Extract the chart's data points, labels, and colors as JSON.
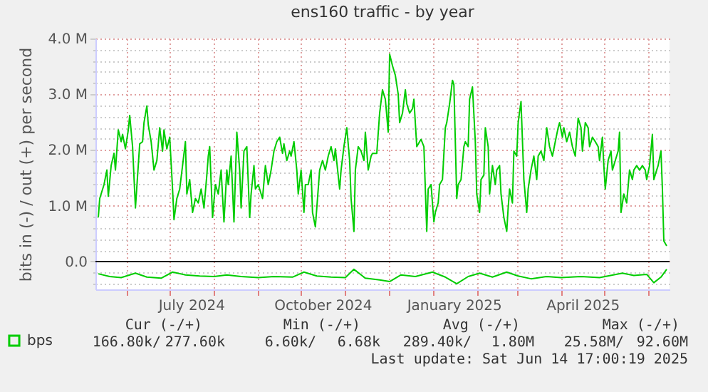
{
  "chart_data": {
    "type": "line",
    "title": "ens160 traffic - by year",
    "ylabel": "bits in (-) / out (+) per second",
    "xlim": [
      "2024-05-10",
      "2025-06-16"
    ],
    "xticks": [
      {
        "value": "2024-06-01",
        "label": null
      },
      {
        "value": "2024-07-01",
        "label": null
      },
      {
        "value": "2024-07-16",
        "label": "July 2024"
      },
      {
        "value": "2024-08-01",
        "label": null
      },
      {
        "value": "2024-09-01",
        "label": null
      },
      {
        "value": "2024-10-01",
        "label": null
      },
      {
        "value": "2024-10-16",
        "label": "October 2024"
      },
      {
        "value": "2024-11-01",
        "label": null
      },
      {
        "value": "2024-12-01",
        "label": null
      },
      {
        "value": "2025-01-01",
        "label": null
      },
      {
        "value": "2025-01-16",
        "label": "January 2025"
      },
      {
        "value": "2025-02-01",
        "label": null
      },
      {
        "value": "2025-03-01",
        "label": null
      },
      {
        "value": "2025-04-01",
        "label": null
      },
      {
        "value": "2025-04-16",
        "label": "April 2025"
      },
      {
        "value": "2025-05-01",
        "label": null
      },
      {
        "value": "2025-06-01",
        "label": null
      }
    ],
    "ylim": [
      -0.5,
      4.0
    ],
    "yticks": [
      {
        "value": -0.4,
        "label": null
      },
      {
        "value": -0.2,
        "label": null
      },
      {
        "value": 0,
        "label": "0.0"
      },
      {
        "value": 0.2,
        "label": null
      },
      {
        "value": 0.4,
        "label": null
      },
      {
        "value": 0.6,
        "label": null
      },
      {
        "value": 0.8,
        "label": null
      },
      {
        "value": 1,
        "label": "1.0 M"
      },
      {
        "value": 1.2,
        "label": null
      },
      {
        "value": 1.4,
        "label": null
      },
      {
        "value": 1.6,
        "label": null
      },
      {
        "value": 1.8,
        "label": null
      },
      {
        "value": 2,
        "label": "2.0 M"
      },
      {
        "value": 2.2,
        "label": null
      },
      {
        "value": 2.4,
        "label": null
      },
      {
        "value": 2.6,
        "label": null
      },
      {
        "value": 2.8,
        "label": null
      },
      {
        "value": 3,
        "label": "3.0 M"
      },
      {
        "value": 3.2,
        "label": null
      },
      {
        "value": 3.4,
        "label": null
      },
      {
        "value": 3.6,
        "label": null
      },
      {
        "value": 3.8,
        "label": null
      },
      {
        "value": 4,
        "label": "4.0 M"
      }
    ],
    "grid": true,
    "legend": "bottom left",
    "line_style": "solid",
    "marker": "none",
    "ref_lines": [
      {
        "axis": "y",
        "value": 0,
        "color": "#000000"
      }
    ],
    "annotations": [
      "Cur (-/+)",
      "Min (-/+)",
      "Avg (-/+)",
      "Max (-/+)",
      "166.80k/",
      "277.60k",
      "6.60k/",
      "6.68k",
      "289.40k/",
      "1.80M",
      "25.58M/",
      "92.60M",
      "Last update: Sat Jun 14 17:00:19 2025"
    ],
    "series": [
      {
        "name": "bps",
        "color": "#00cc00",
        "x": [
          "2024-05-12",
          "2024-05-13",
          "2024-05-16",
          "2024-05-18",
          "2024-05-19",
          "2024-05-21",
          "2024-05-23",
          "2024-05-24",
          "2024-05-26",
          "2024-05-28",
          "2024-05-29",
          "2024-05-31",
          "2024-06-02",
          "2024-06-03",
          "2024-06-05",
          "2024-06-07",
          "2024-06-10",
          "2024-06-12",
          "2024-06-13",
          "2024-06-15",
          "2024-06-16",
          "2024-06-18",
          "2024-06-20",
          "2024-06-22",
          "2024-06-24",
          "2024-06-26",
          "2024-06-27",
          "2024-06-29",
          "2024-07-01",
          "2024-07-03",
          "2024-07-04",
          "2024-07-06",
          "2024-07-08",
          "2024-07-10",
          "2024-07-12",
          "2024-07-13",
          "2024-07-15",
          "2024-07-17",
          "2024-07-19",
          "2024-07-21",
          "2024-07-23",
          "2024-07-25",
          "2024-07-27",
          "2024-07-28",
          "2024-07-29",
          "2024-07-31",
          "2024-08-02",
          "2024-08-04",
          "2024-08-06",
          "2024-08-08",
          "2024-08-10",
          "2024-08-11",
          "2024-08-13",
          "2024-08-15",
          "2024-08-17",
          "2024-08-19",
          "2024-08-20",
          "2024-08-22",
          "2024-08-24",
          "2024-08-26",
          "2024-08-27",
          "2024-08-29",
          "2024-08-30",
          "2024-09-01",
          "2024-09-04",
          "2024-09-06",
          "2024-09-08",
          "2024-09-10",
          "2024-09-12",
          "2024-09-14",
          "2024-09-16",
          "2024-09-18",
          "2024-09-19",
          "2024-09-21",
          "2024-09-23",
          "2024-09-24",
          "2024-09-26",
          "2024-09-28",
          "2024-09-29",
          "2024-10-01",
          "2024-10-03",
          "2024-10-04",
          "2024-10-06",
          "2024-10-08",
          "2024-10-09",
          "2024-10-11",
          "2024-10-13",
          "2024-10-14",
          "2024-10-16",
          "2024-10-18",
          "2024-10-20",
          "2024-10-22",
          "2024-10-24",
          "2024-10-25",
          "2024-10-28",
          "2024-10-29",
          "2024-10-31",
          "2024-11-02",
          "2024-11-04",
          "2024-11-05",
          "2024-11-07",
          "2024-11-08",
          "2024-11-10",
          "2024-11-12",
          "2024-11-14",
          "2024-11-15",
          "2024-11-17",
          "2024-11-19",
          "2024-11-20",
          "2024-11-23",
          "2024-11-25",
          "2024-11-27",
          "2024-11-29",
          "2024-12-01",
          "2024-12-02",
          "2024-12-04",
          "2024-12-06",
          "2024-12-08",
          "2024-12-09",
          "2024-12-11",
          "2024-12-13",
          "2024-12-14",
          "2024-12-16",
          "2024-12-18",
          "2024-12-19",
          "2024-12-21",
          "2024-12-23",
          "2024-12-24",
          "2024-12-26",
          "2024-12-28",
          "2024-12-29",
          "2024-12-31",
          "2025-01-02",
          "2025-01-03",
          "2025-01-05",
          "2025-01-06",
          "2025-01-08",
          "2025-01-10",
          "2025-01-11",
          "2025-01-13",
          "2025-01-15",
          "2025-01-16",
          "2025-01-18",
          "2025-01-19",
          "2025-01-21",
          "2025-01-23",
          "2025-01-24",
          "2025-01-26",
          "2025-01-27",
          "2025-01-29",
          "2025-01-31",
          "2025-02-01",
          "2025-02-03",
          "2025-02-04",
          "2025-02-06",
          "2025-02-07",
          "2025-02-09",
          "2025-02-10",
          "2025-02-12",
          "2025-02-14",
          "2025-02-15",
          "2025-02-17",
          "2025-02-18",
          "2025-02-20",
          "2025-02-22",
          "2025-02-23",
          "2025-02-24",
          "2025-02-26",
          "2025-02-27",
          "2025-03-01",
          "2025-03-02",
          "2025-03-04",
          "2025-03-06",
          "2025-03-08",
          "2025-03-09",
          "2025-03-11",
          "2025-03-13",
          "2025-03-15",
          "2025-03-16",
          "2025-03-18",
          "2025-03-20",
          "2025-03-22",
          "2025-03-24",
          "2025-03-26",
          "2025-03-28",
          "2025-03-30",
          "2025-03-31",
          "2025-04-02",
          "2025-04-03",
          "2025-04-05",
          "2025-04-07",
          "2025-04-09",
          "2025-04-11",
          "2025-04-13",
          "2025-04-15",
          "2025-04-16",
          "2025-04-18",
          "2025-04-20",
          "2025-04-21",
          "2025-04-23",
          "2025-04-25",
          "2025-04-27",
          "2025-04-28",
          "2025-04-30",
          "2025-05-01",
          "2025-05-02",
          "2025-05-04",
          "2025-05-06",
          "2025-05-07",
          "2025-05-09",
          "2025-05-11",
          "2025-05-12",
          "2025-05-13",
          "2025-05-15",
          "2025-05-17",
          "2025-05-19",
          "2025-05-21",
          "2025-05-22",
          "2025-05-24",
          "2025-05-26",
          "2025-05-28",
          "2025-05-30",
          "2025-05-31",
          "2025-06-02",
          "2025-06-04",
          "2025-06-05",
          "2025-06-07",
          "2025-06-08",
          "2025-06-10",
          "2025-06-11",
          "2025-06-12",
          "2025-06-14"
        ],
        "values": [
          0.79,
          1.13,
          1.38,
          1.64,
          1.17,
          1.72,
          1.94,
          1.64,
          2.36,
          2.15,
          2.28,
          2.02,
          2.36,
          2.62,
          2.06,
          0.96,
          2.11,
          2.15,
          2.49,
          2.79,
          2.45,
          2.15,
          1.64,
          1.81,
          2.4,
          1.98,
          2.36,
          2.02,
          2.23,
          1.3,
          0.75,
          1.13,
          1.3,
          1.72,
          2.15,
          1.21,
          1.47,
          0.88,
          1.13,
          1.05,
          1.3,
          0.96,
          1.55,
          1.89,
          2.06,
          0.79,
          1.38,
          1.21,
          1.64,
          0.71,
          1.64,
          1.38,
          1.89,
          0.71,
          2.32,
          1.64,
          0.96,
          1.98,
          2.06,
          0.79,
          1.21,
          1.72,
          1.3,
          1.38,
          1.13,
          1.72,
          1.38,
          1.64,
          1.98,
          2.15,
          2.23,
          1.94,
          2.11,
          1.81,
          1.98,
          1.89,
          2.15,
          1.64,
          1.21,
          1.64,
          0.88,
          1.38,
          1.38,
          1.64,
          0.88,
          0.62,
          1.3,
          1.64,
          1.81,
          1.64,
          1.89,
          2.06,
          1.81,
          2.02,
          1.3,
          1.64,
          2.06,
          2.4,
          1.81,
          1.13,
          0.54,
          1.64,
          2.06,
          1.98,
          1.81,
          2.32,
          1.64,
          1.89,
          1.94,
          1.94,
          2.66,
          3.08,
          2.91,
          2.32,
          3.72,
          3.51,
          3.34,
          3.0,
          2.49,
          2.66,
          3.08,
          2.83,
          2.66,
          2.74,
          2.91,
          2.06,
          2.15,
          2.19,
          2.06,
          0.54,
          1.3,
          1.38,
          0.71,
          0.88,
          1.05,
          1.38,
          1.47,
          2.4,
          2.49,
          2.83,
          3.25,
          3.17,
          1.13,
          1.38,
          1.47,
          2.06,
          2.15,
          2.06,
          2.91,
          3.13,
          2.15,
          1.21,
          0.88,
          1.47,
          1.55,
          2.4,
          2.06,
          1.21,
          1.72,
          1.38,
          1.64,
          1.72,
          1.21,
          0.79,
          0.54,
          0.96,
          1.3,
          1.05,
          1.98,
          1.89,
          2.49,
          2.87,
          1.47,
          0.88,
          1.3,
          1.64,
          1.89,
          1.47,
          1.89,
          1.98,
          1.81,
          2.4,
          2.06,
          1.89,
          2.15,
          2.4,
          2.49,
          2.23,
          2.4,
          2.15,
          2.32,
          2.06,
          1.89,
          2.57,
          2.4,
          1.98,
          2.49,
          2.4,
          2.06,
          2.23,
          2.15,
          2.06,
          1.81,
          2.23,
          1.72,
          1.3,
          1.81,
          1.98,
          1.64,
          1.81,
          1.98,
          2.32,
          0.88,
          1.21,
          1.05,
          1.64,
          1.47,
          1.64,
          1.72,
          1.64,
          1.72,
          1.64,
          1.47,
          1.72,
          2.28,
          1.47,
          1.64,
          1.72,
          1.98,
          1.3,
          0.37,
          0.28
        ]
      },
      {
        "color": "#00cc00",
        "x": [
          "2024-05-12",
          "2024-05-20",
          "2024-05-28",
          "2024-06-07",
          "2024-06-15",
          "2024-06-25",
          "2024-07-03",
          "2024-07-12",
          "2024-07-22",
          "2024-08-01",
          "2024-08-10",
          "2024-08-20",
          "2024-09-01",
          "2024-09-12",
          "2024-09-25",
          "2024-10-03",
          "2024-10-12",
          "2024-10-22",
          "2024-11-01",
          "2024-11-07",
          "2024-11-15",
          "2024-11-25",
          "2024-12-02",
          "2024-12-10",
          "2024-12-20",
          "2025-01-01",
          "2025-01-10",
          "2025-01-18",
          "2025-01-26",
          "2025-02-03",
          "2025-02-12",
          "2025-02-22",
          "2025-03-02",
          "2025-03-11",
          "2025-03-22",
          "2025-04-01",
          "2025-04-15",
          "2025-04-28",
          "2025-05-14",
          "2025-05-22",
          "2025-05-31",
          "2025-06-05",
          "2025-06-10",
          "2025-06-14"
        ],
        "values": [
          -0.22,
          -0.27,
          -0.29,
          -0.21,
          -0.28,
          -0.3,
          -0.19,
          -0.24,
          -0.26,
          -0.27,
          -0.24,
          -0.27,
          -0.29,
          -0.27,
          -0.28,
          -0.19,
          -0.26,
          -0.28,
          -0.29,
          -0.14,
          -0.3,
          -0.33,
          -0.36,
          -0.24,
          -0.27,
          -0.19,
          -0.28,
          -0.4,
          -0.27,
          -0.21,
          -0.28,
          -0.19,
          -0.26,
          -0.31,
          -0.27,
          -0.29,
          -0.27,
          -0.29,
          -0.21,
          -0.25,
          -0.23,
          -0.38,
          -0.28,
          -0.14
        ]
      }
    ]
  }
}
